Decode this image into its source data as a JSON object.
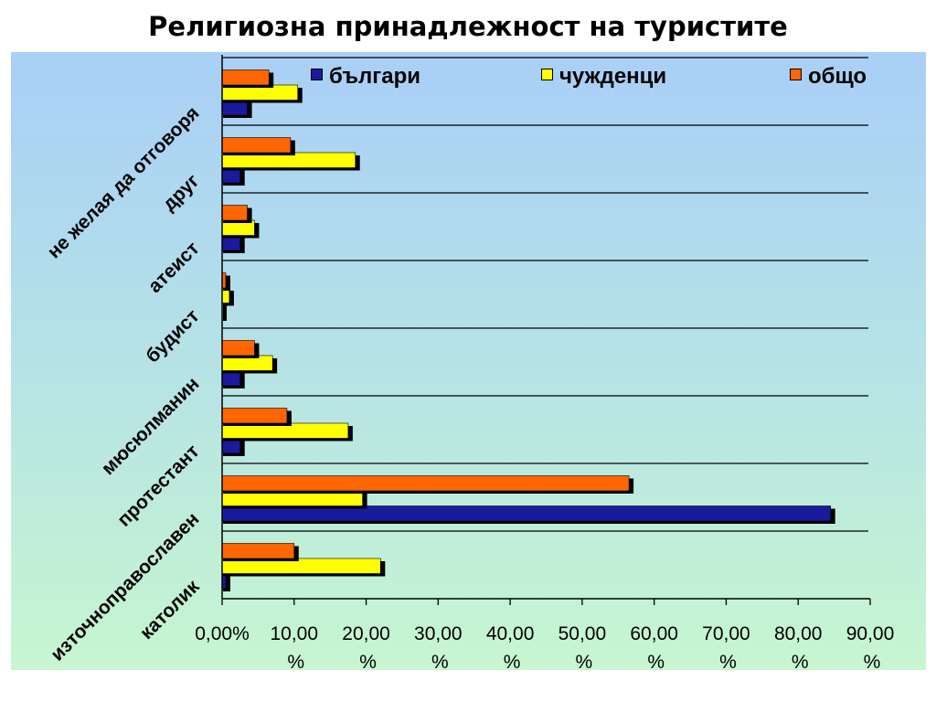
{
  "slide": {
    "title": "Религиозна принадлежност на туристите"
  },
  "legend": [
    {
      "label": "българи",
      "color": "#1a1a9c"
    },
    {
      "label": "чужденци",
      "color": "#ffff00"
    },
    {
      "label": "общо",
      "color": "#ff6600"
    }
  ],
  "chart_data": {
    "type": "bar",
    "orientation": "horizontal",
    "title": "Религиозна принадлежност на туристите",
    "categories": [
      "католик",
      "източноправославен",
      "протестант",
      "мюсюлманин",
      "будист",
      "атеист",
      "друг",
      "не желая да отговоря"
    ],
    "series": [
      {
        "name": "българи",
        "color": "#1a1a9c",
        "values": [
          0.5,
          84.5,
          2.5,
          2.5,
          0.0,
          2.5,
          2.5,
          3.5
        ]
      },
      {
        "name": "чужденци",
        "color": "#ffff00",
        "values": [
          22.0,
          19.5,
          17.5,
          7.0,
          1.0,
          4.5,
          18.5,
          10.5
        ]
      },
      {
        "name": "общо",
        "color": "#ff6600",
        "values": [
          10.0,
          56.5,
          9.0,
          4.5,
          0.5,
          3.5,
          9.5,
          6.5
        ]
      }
    ],
    "xlim": [
      0,
      90
    ],
    "x_ticks": [
      0,
      10,
      20,
      30,
      40,
      50,
      60,
      70,
      80,
      90
    ],
    "x_tick_labels": [
      "0,00%",
      "10,00\n%",
      "20,00\n%",
      "30,00\n%",
      "40,00\n%",
      "50,00\n%",
      "60,00\n%",
      "70,00\n%",
      "80,00\n%",
      "90,00\n%"
    ],
    "grid": "horizontal separators",
    "legend_position": "top"
  }
}
